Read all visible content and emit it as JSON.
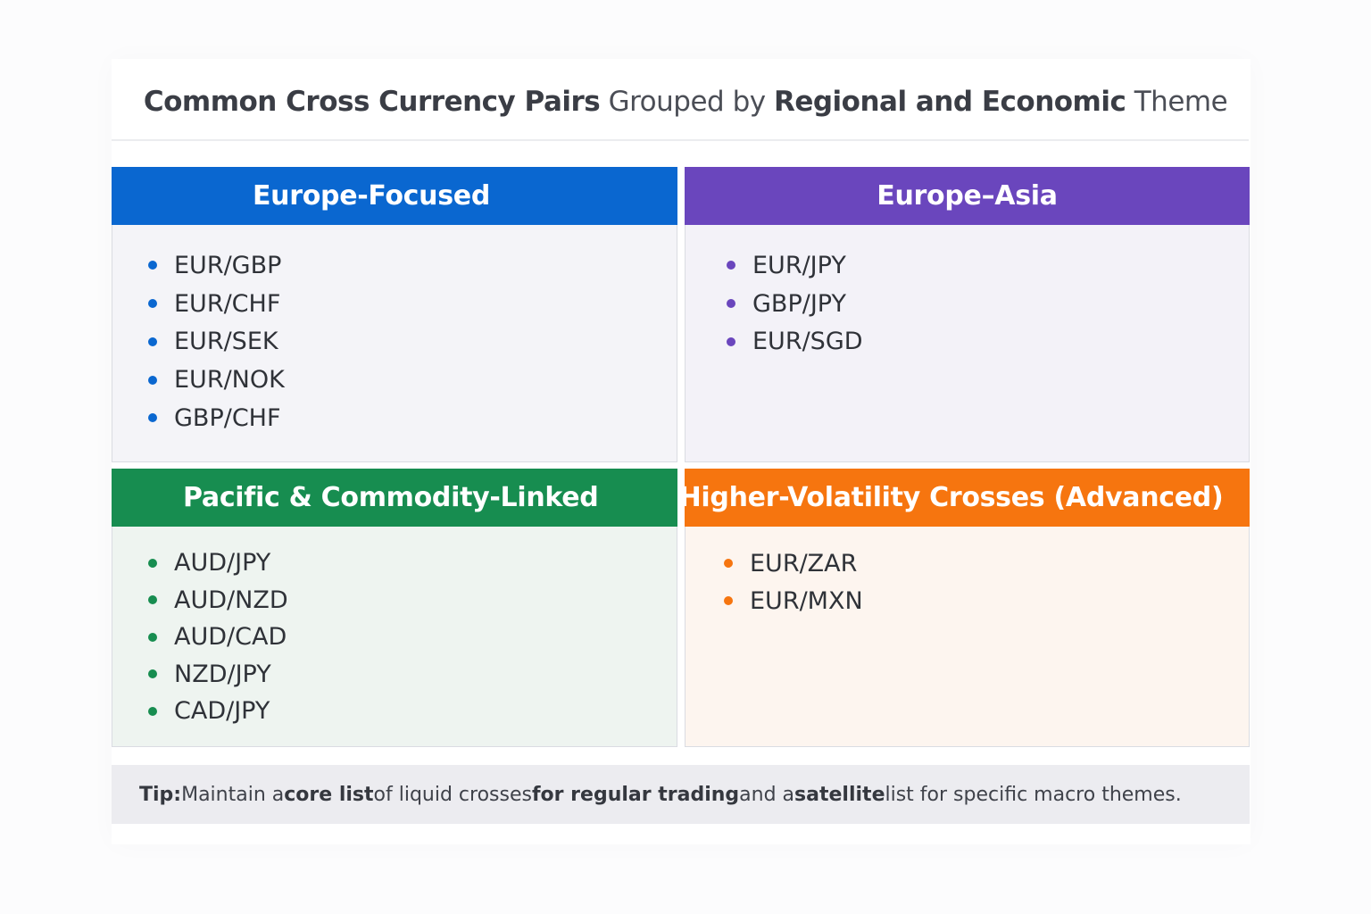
{
  "title": {
    "parts": [
      {
        "text": "Common Cross Currency Pairs",
        "bold": true
      },
      {
        "text": " Grouped by ",
        "bold": false
      },
      {
        "text": "Regional and Economic",
        "bold": true
      },
      {
        "text": " Theme",
        "bold": false
      }
    ]
  },
  "panels": [
    {
      "title": "Europe-Focused",
      "color": "#0a67d0",
      "items": [
        "EUR/GBP",
        "EUR/CHF",
        "EUR/SEK",
        "EUR/NOK",
        "GBP/CHF"
      ]
    },
    {
      "title": "Europe–Asia",
      "color": "#6a46bd",
      "items": [
        "EUR/JPY",
        "GBP/JPY",
        "EUR/SGD"
      ]
    },
    {
      "title": "Pacific & Commodity-Linked",
      "color": "#178d50",
      "items": [
        "AUD/JPY",
        "AUD/NZD",
        "AUD/CAD",
        "NZD/JPY",
        "CAD/JPY"
      ]
    },
    {
      "title": "Higher-Volatility Crosses (Advanced)",
      "color": "#f6750f",
      "items": [
        "EUR/ZAR",
        "EUR/MXN"
      ]
    }
  ],
  "tip": {
    "parts": [
      {
        "text": "Tip:",
        "bold": true
      },
      {
        "text": " Maintain a ",
        "bold": false
      },
      {
        "text": "core list",
        "bold": true
      },
      {
        "text": " of liquid crosses ",
        "bold": false
      },
      {
        "text": "for regular trading",
        "bold": true
      },
      {
        "text": " and a ",
        "bold": false
      },
      {
        "text": "satellite",
        "bold": true
      },
      {
        "text": " list for specific macro themes.",
        "bold": false
      }
    ]
  }
}
